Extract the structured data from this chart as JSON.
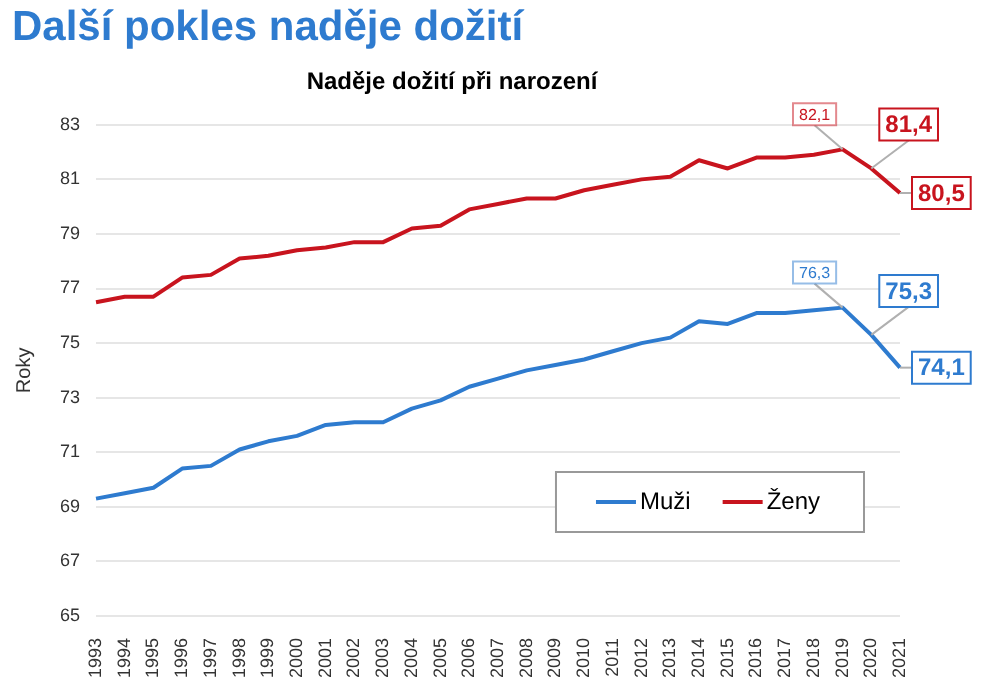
{
  "chart_data": {
    "type": "line",
    "title": "Další pokles naděje dožití",
    "subtitle": "Naděje dožití při narození",
    "ylabel": "Roky",
    "categories": [
      "1993",
      "1994",
      "1995",
      "1996",
      "1997",
      "1998",
      "1999",
      "2000",
      "2001",
      "2002",
      "2003",
      "2004",
      "2005",
      "2006",
      "2007",
      "2008",
      "2009",
      "2010",
      "2011",
      "2012",
      "2013",
      "2014",
      "2015",
      "2016",
      "2017",
      "2018",
      "2019",
      "2020",
      "2021"
    ],
    "series": [
      {
        "name": "Muži",
        "color": "#2e7bcf",
        "values": [
          69.3,
          69.5,
          69.7,
          70.4,
          70.5,
          71.1,
          71.4,
          71.6,
          72.0,
          72.1,
          72.1,
          72.6,
          72.9,
          73.4,
          73.7,
          74.0,
          74.2,
          74.4,
          74.7,
          75.0,
          75.2,
          75.8,
          75.7,
          76.1,
          76.1,
          76.2,
          76.3,
          75.3,
          74.1
        ],
        "value_labels": [
          null,
          null,
          null,
          null,
          null,
          null,
          null,
          null,
          null,
          null,
          null,
          null,
          null,
          null,
          null,
          null,
          null,
          null,
          null,
          null,
          null,
          null,
          null,
          null,
          null,
          null,
          "76,3",
          "75,3",
          "74,1"
        ]
      },
      {
        "name": "Ženy",
        "color": "#c8141e",
        "values": [
          76.5,
          76.7,
          76.7,
          77.4,
          77.5,
          78.1,
          78.2,
          78.4,
          78.5,
          78.7,
          78.7,
          79.2,
          79.3,
          79.9,
          80.1,
          80.3,
          80.3,
          80.6,
          80.8,
          81.0,
          81.1,
          81.7,
          81.4,
          81.8,
          81.8,
          81.9,
          82.1,
          81.4,
          80.5
        ],
        "value_labels": [
          null,
          null,
          null,
          null,
          null,
          null,
          null,
          null,
          null,
          null,
          null,
          null,
          null,
          null,
          null,
          null,
          null,
          null,
          null,
          null,
          null,
          null,
          null,
          null,
          null,
          null,
          "82,1",
          "81,4",
          "80,5"
        ]
      }
    ],
    "ylim": [
      65,
      83
    ],
    "yticks": [
      65,
      67,
      69,
      71,
      73,
      75,
      77,
      79,
      81,
      83
    ],
    "grid": "y",
    "legend": "bottom right",
    "marker": "none",
    "line_style": "solid"
  }
}
